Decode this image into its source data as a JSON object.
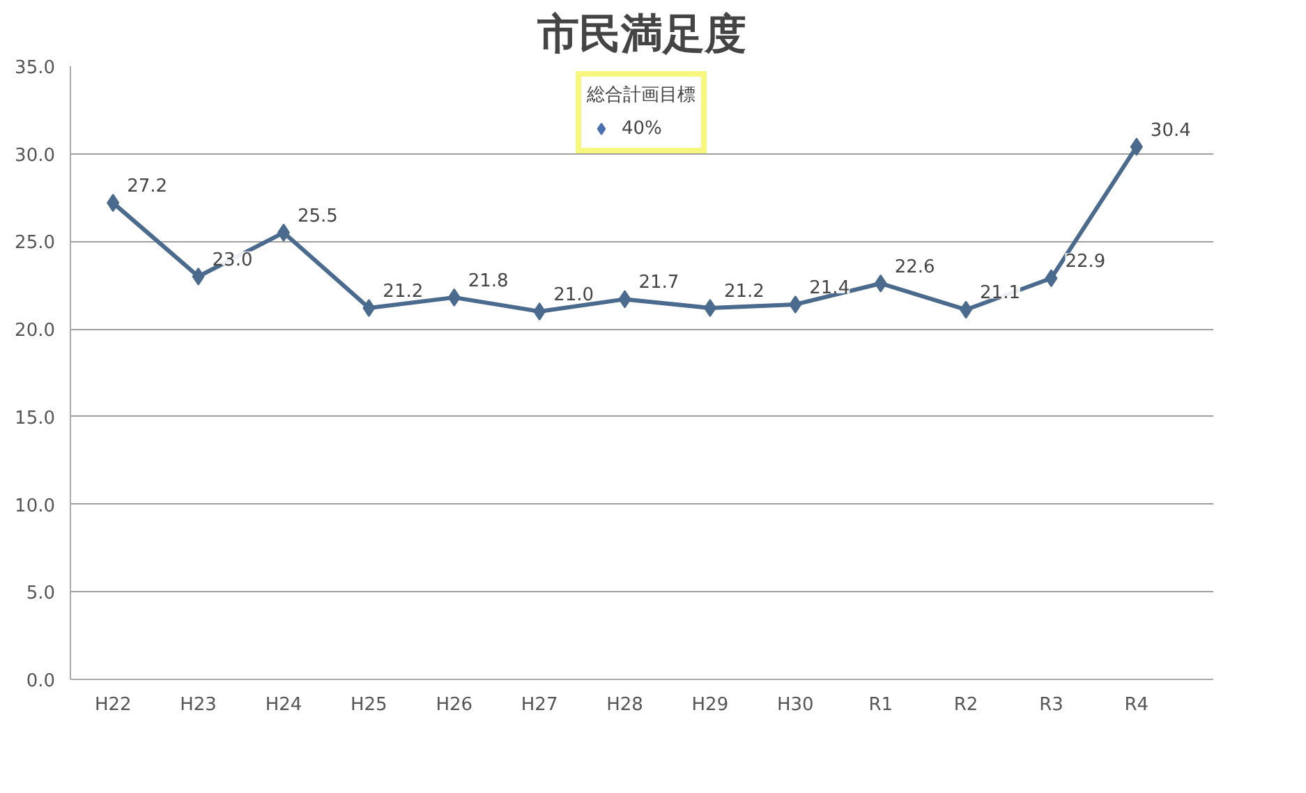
{
  "chart_data": {
    "type": "line",
    "title": "市民満足度",
    "categories": [
      "H22",
      "H23",
      "H24",
      "H25",
      "H26",
      "H27",
      "H28",
      "H29",
      "H30",
      "R1",
      "R2",
      "R3",
      "R4"
    ],
    "series": [
      {
        "type": "line",
        "color": "#4a6a8e",
        "marker": "diamond",
        "values": [
          27.2,
          23.0,
          25.5,
          21.2,
          21.8,
          21.0,
          21.7,
          21.2,
          21.4,
          22.6,
          21.1,
          22.9,
          30.4
        ],
        "value_labels": [
          "27.2",
          "23.0",
          "25.5",
          "21.2",
          "21.8",
          "21.0",
          "21.7",
          "21.2",
          "21.4",
          "22.6",
          "21.1",
          "22.9",
          "30.4"
        ]
      },
      {
        "type": "scatter",
        "name": "40%",
        "color": "#4a6fb0",
        "marker": "diamond",
        "values": [
          null,
          null,
          null,
          null,
          null,
          null,
          null,
          null,
          null,
          null,
          null,
          null,
          null
        ]
      }
    ],
    "legend_title": "総合計画目標",
    "legend": "top right",
    "ylim": [
      0,
      35
    ],
    "yticks": [
      {
        "value": 0,
        "label": "0.0"
      },
      {
        "value": 5,
        "label": "5.0"
      },
      {
        "value": 10,
        "label": "10.0"
      },
      {
        "value": 15,
        "label": "15.0"
      },
      {
        "value": 20,
        "label": "20.0"
      },
      {
        "value": 25,
        "label": "25.0"
      },
      {
        "value": 30,
        "label": "30.0"
      },
      {
        "value": 35,
        "label": "35.0"
      }
    ],
    "grid": "y"
  }
}
